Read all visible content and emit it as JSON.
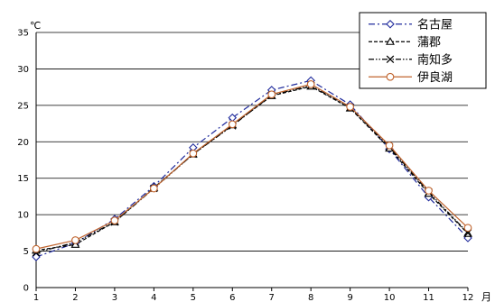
{
  "chart_data": {
    "type": "line",
    "ylabel": "℃",
    "xlabel": "月",
    "x": [
      1,
      2,
      3,
      4,
      5,
      6,
      7,
      8,
      9,
      10,
      11,
      12
    ],
    "ylim": [
      0,
      35
    ],
    "yticks": [
      0,
      5,
      10,
      15,
      20,
      25,
      30,
      35
    ],
    "grid": "horizontal",
    "legend_position": "top-right",
    "series": [
      {
        "name": "名古屋",
        "color": "#1F2A9C",
        "dash": "dash-dot",
        "marker": "diamond",
        "values": [
          4.2,
          6.1,
          9.4,
          13.9,
          19.2,
          23.3,
          27.1,
          28.4,
          25.1,
          19.0,
          12.4,
          6.8
        ]
      },
      {
        "name": "蒲郡",
        "color": "#000000",
        "dash": "dash",
        "marker": "triangle",
        "values": [
          5.1,
          5.9,
          9.0,
          13.7,
          18.3,
          22.3,
          26.3,
          27.6,
          24.6,
          19.1,
          12.9,
          7.4
        ]
      },
      {
        "name": "南知多",
        "color": "#000000",
        "dash": "dash-dot-dot",
        "marker": "x",
        "values": [
          4.8,
          6.2,
          9.0,
          13.6,
          18.3,
          22.2,
          26.4,
          27.7,
          24.7,
          19.3,
          13.1,
          7.5
        ]
      },
      {
        "name": "伊良湖",
        "color": "#C0642E",
        "dash": "solid",
        "marker": "circle",
        "values": [
          5.3,
          6.5,
          9.2,
          13.6,
          18.4,
          22.4,
          26.5,
          27.9,
          24.8,
          19.5,
          13.3,
          8.2
        ]
      }
    ]
  }
}
